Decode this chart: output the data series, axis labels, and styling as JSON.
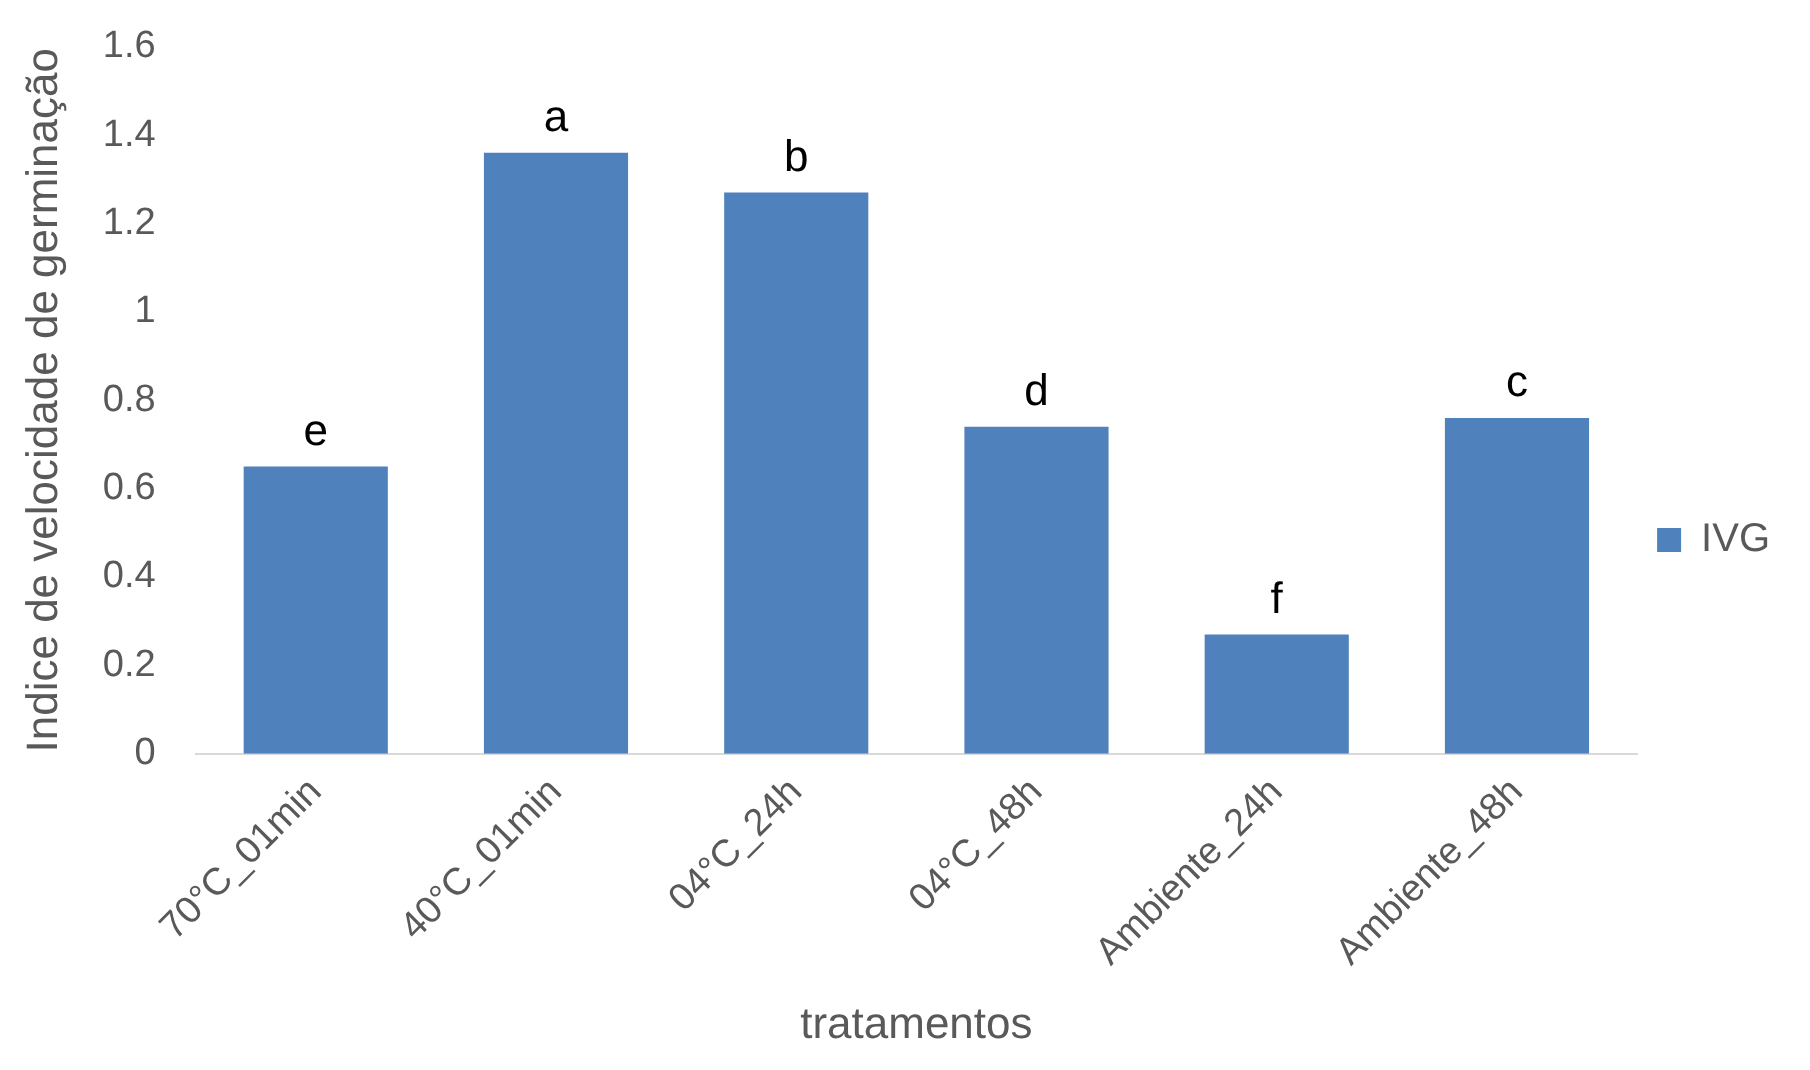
{
  "chart_data": {
    "type": "bar",
    "xlabel": "tratamentos",
    "ylabel": "Indice de velocidade de germinação",
    "categories": [
      "70°C_01min",
      "40°C_01min",
      "04°C_24h",
      "04°C_48h",
      "Ambiente_24h",
      "Ambiente_48h"
    ],
    "series": [
      {
        "name": "IVG",
        "color": "#4f81bd",
        "values": [
          0.65,
          1.36,
          1.27,
          0.74,
          0.27,
          0.76
        ]
      }
    ],
    "ylim": [
      0,
      1.6
    ],
    "yticks": [
      0,
      0.2,
      0.4,
      0.6,
      0.8,
      1,
      1.2,
      1.4,
      1.6
    ],
    "grid": false,
    "legend": "right",
    "annotations": [
      {
        "text": "e",
        "x": "70°C_01min",
        "y": 0.65
      },
      {
        "text": "a",
        "x": "40°C_01min",
        "y": 1.36
      },
      {
        "text": "b",
        "x": "04°C_24h",
        "y": 1.27
      },
      {
        "text": "d",
        "x": "04°C_48h",
        "y": 0.74
      },
      {
        "text": "f",
        "x": "Ambiente_24h",
        "y": 0.27
      },
      {
        "text": "c",
        "x": "Ambiente_48h",
        "y": 0.76
      }
    ]
  }
}
